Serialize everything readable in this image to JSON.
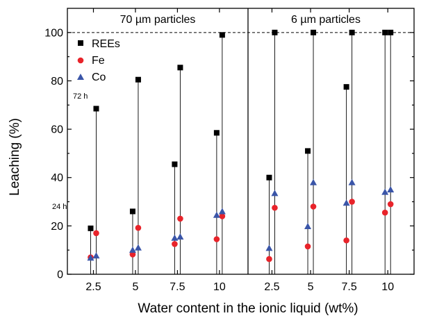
{
  "chart_data": {
    "type": "scatter",
    "xlabel": "Water content in the ionic liquid (wt%)",
    "ylabel": "Leaching (%)",
    "ylim": [
      0,
      110
    ],
    "yticks": [
      0,
      20,
      40,
      60,
      80,
      100
    ],
    "reference_line": 100,
    "legend": {
      "placement": "top-left",
      "entries": [
        {
          "name": "REEs",
          "color": "#000000",
          "marker": "square"
        },
        {
          "name": "Fe",
          "color": "#e8232a",
          "marker": "circle"
        },
        {
          "name": "Co",
          "color": "#3a55a8",
          "marker": "triangle"
        }
      ]
    },
    "annotations": [
      "72 h",
      "24 h"
    ],
    "panels": [
      {
        "title": "70 µm particles",
        "categories": [
          "2.5",
          "5",
          "7.5",
          "10"
        ],
        "series": [
          {
            "name": "REEs",
            "values_24h": [
              19,
              26,
              45.5,
              58.5
            ],
            "values_72h": [
              68.5,
              80.5,
              85.5,
              99
            ]
          },
          {
            "name": "Fe",
            "values_24h": [
              7,
              8.2,
              12.5,
              14.5
            ],
            "values_72h": [
              17,
              19.2,
              23,
              24
            ]
          },
          {
            "name": "Co",
            "values_24h": [
              6.8,
              10,
              15,
              24.5
            ],
            "values_72h": [
              7.7,
              11,
              15.5,
              26
            ]
          }
        ]
      },
      {
        "title": "6 µm particles",
        "categories": [
          "2.5",
          "5",
          "7.5",
          "10"
        ],
        "series": [
          {
            "name": "REEs",
            "values_24h": [
              40,
              51,
              77.5,
              100
            ],
            "values_72h": [
              100,
              100,
              100,
              100
            ]
          },
          {
            "name": "Fe",
            "values_24h": [
              6.3,
              11.5,
              14,
              25.5
            ],
            "values_72h": [
              27.5,
              28,
              30,
              29
            ]
          },
          {
            "name": "Co",
            "values_24h": [
              10.8,
              19.8,
              29.5,
              34
            ],
            "values_72h": [
              33.5,
              38,
              38,
              35
            ]
          }
        ]
      }
    ]
  }
}
